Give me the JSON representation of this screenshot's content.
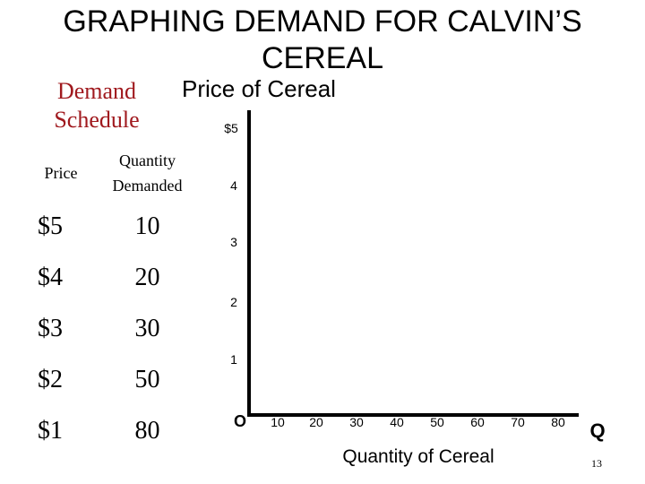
{
  "slide": {
    "title_line1": "GRAPHING DEMAND FOR CALVIN’S",
    "title_line2": "CEREAL",
    "page_number": "13"
  },
  "schedule": {
    "title_line1": "Demand",
    "title_line2": "Schedule",
    "title_color": "#a0191e",
    "header_price": "Price",
    "header_qty_line1": "Quantity",
    "header_qty_line2": "Demanded",
    "rows": [
      {
        "price": "$5",
        "qty": "10"
      },
      {
        "price": "$4",
        "qty": "20"
      },
      {
        "price": "$3",
        "qty": "30"
      },
      {
        "price": "$2",
        "qty": "50"
      },
      {
        "price": "$1",
        "qty": "80"
      }
    ]
  },
  "graph": {
    "y_title": "Price of Cereal",
    "x_title": "Quantity of Cereal",
    "origin_label": "O",
    "x_axis_symbol": "Q",
    "y_tick_labels": [
      "$5",
      "4",
      "3",
      "2",
      "1"
    ],
    "x_tick_labels": [
      "10",
      "20",
      "30",
      "40",
      "50",
      "60",
      "70",
      "80"
    ]
  }
}
